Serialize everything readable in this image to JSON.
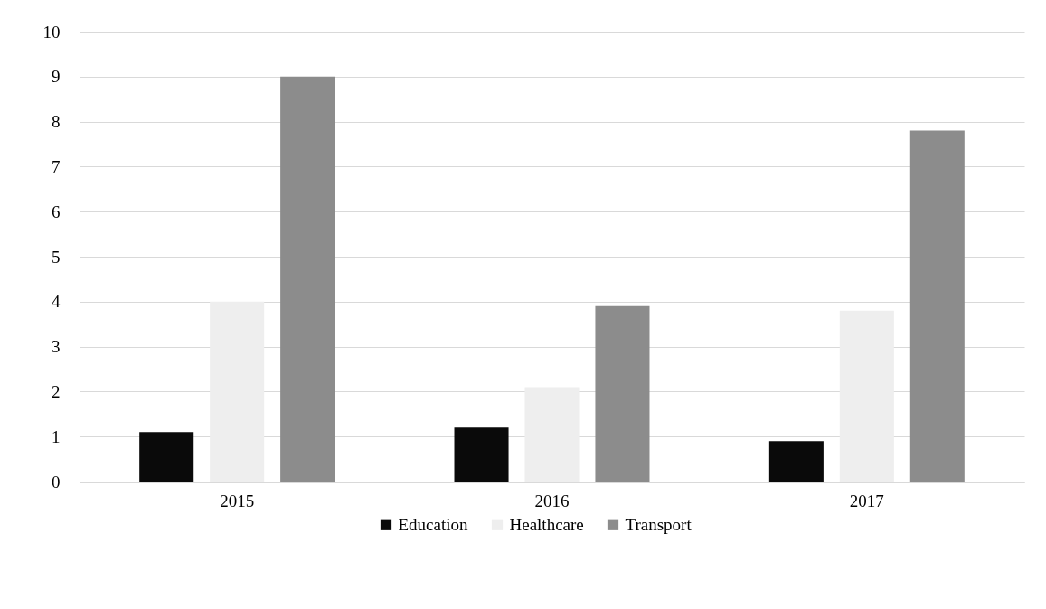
{
  "chart_data": {
    "type": "bar",
    "categories": [
      "2015",
      "2016",
      "2017"
    ],
    "series": [
      {
        "name": "Education",
        "color": "#0a0a0a",
        "values": [
          1.1,
          1.2,
          0.9
        ]
      },
      {
        "name": "Healthcare",
        "color": "#eeeeee",
        "values": [
          4.0,
          2.1,
          3.8
        ]
      },
      {
        "name": "Transport",
        "color": "#8c8c8c",
        "values": [
          9.0,
          3.9,
          7.8
        ]
      }
    ],
    "ylim": [
      0,
      10
    ],
    "yticks": [
      0,
      1,
      2,
      3,
      4,
      5,
      6,
      7,
      8,
      9,
      10
    ],
    "grid": "y",
    "legend": "bottom"
  }
}
